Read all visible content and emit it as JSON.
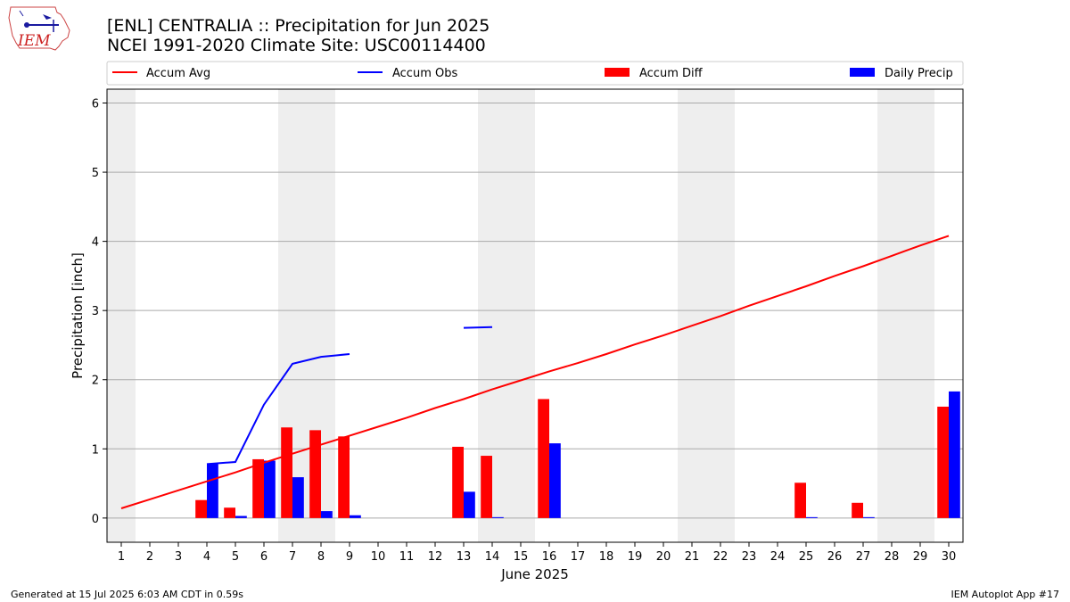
{
  "header": {
    "title_line1": "[ENL] CENTRALIA :: Precipitation for Jun 2025",
    "title_line2": "NCEI 1991-2020 Climate Site: USC00114400"
  },
  "logo": {
    "text": "IEM"
  },
  "footer": {
    "left": "Generated at 15 Jul 2025 6:03 AM CDT in 0.59s",
    "right": "IEM Autoplot App #17"
  },
  "colors": {
    "accum_avg": "#ff0000",
    "accum_obs": "#0000ff",
    "accum_diff": "#ff0000",
    "daily_precip": "#0000ff",
    "weekend_band": "#eeeeee",
    "grid": "#aaaaaa"
  },
  "chart_data": {
    "type": "bar",
    "xlabel": "June 2025",
    "ylabel": "Precipitation [inch]",
    "x": [
      1,
      2,
      3,
      4,
      5,
      6,
      7,
      8,
      9,
      10,
      11,
      12,
      13,
      14,
      15,
      16,
      17,
      18,
      19,
      20,
      21,
      22,
      23,
      24,
      25,
      26,
      27,
      28,
      29,
      30
    ],
    "xlim": [
      0.5,
      30.5
    ],
    "ylim": [
      -0.35,
      6.2
    ],
    "yticks": [
      0,
      1,
      2,
      3,
      4,
      5,
      6
    ],
    "grid": "horizontal",
    "legend_position": "top",
    "weekend_days": [
      1,
      7,
      8,
      14,
      15,
      21,
      22,
      28,
      29
    ],
    "series": [
      {
        "name": "Accum Avg",
        "kind": "line",
        "values": [
          0.14,
          0.27,
          0.4,
          0.53,
          0.66,
          0.8,
          0.93,
          1.06,
          1.19,
          1.32,
          1.45,
          1.59,
          1.72,
          1.86,
          1.99,
          2.12,
          2.24,
          2.37,
          2.51,
          2.64,
          2.78,
          2.92,
          3.07,
          3.21,
          3.35,
          3.5,
          3.64,
          3.79,
          3.94,
          4.08
        ]
      },
      {
        "name": "Accum Obs",
        "kind": "line",
        "values": [
          null,
          null,
          null,
          0.78,
          0.81,
          1.64,
          2.23,
          2.33,
          2.37,
          null,
          null,
          null,
          2.75,
          2.76,
          null,
          null,
          null,
          null,
          null,
          null,
          null,
          null,
          null,
          null,
          null,
          null,
          null,
          null,
          null,
          null
        ]
      },
      {
        "name": "Accum Diff",
        "kind": "bar",
        "values": [
          0,
          0,
          0,
          0.26,
          0.15,
          0.85,
          1.31,
          1.27,
          1.18,
          0,
          0,
          0,
          1.03,
          0.9,
          0,
          1.72,
          0,
          0,
          0,
          0,
          0,
          0,
          0,
          0,
          0.51,
          0,
          0.22,
          0,
          0,
          1.61
        ]
      },
      {
        "name": "Daily Precip",
        "kind": "bar",
        "values": [
          0,
          0,
          0,
          0.78,
          0.03,
          0.83,
          0.59,
          0.1,
          0.04,
          0,
          0,
          0,
          0.38,
          0.01,
          0,
          1.08,
          0,
          0,
          0,
          0,
          0,
          0,
          0,
          0,
          0.01,
          0,
          0.01,
          0,
          0,
          1.83
        ]
      }
    ]
  }
}
